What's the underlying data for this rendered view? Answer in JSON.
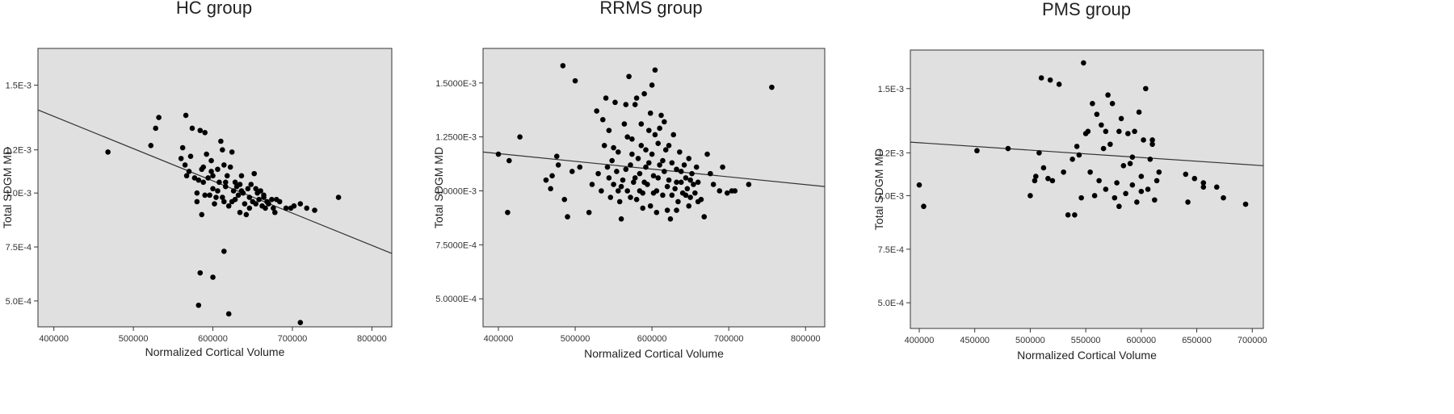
{
  "chart_data": [
    {
      "type": "scatter",
      "title": "HC group",
      "xlabel": "Normalized Cortical Volume",
      "ylabel": "Total SDGM MD",
      "xlim": [
        380000,
        825000
      ],
      "ylim": [
        0.00038,
        0.00167
      ],
      "xticks": [
        400000,
        500000,
        600000,
        700000,
        800000
      ],
      "xtick_labels": [
        "400000",
        "500000",
        "600000",
        "700000",
        "800000"
      ],
      "yticks": [
        0.0005,
        0.00075,
        0.001,
        0.0012,
        0.0015
      ],
      "ytick_labels": [
        "5.0E-4",
        "7.5E-4",
        "1.0E-3",
        "1.2E-3",
        "1.5E-3"
      ],
      "fit_line": {
        "x": [
          380000,
          825000
        ],
        "y": [
          0.001385,
          0.00072
        ]
      },
      "points": [
        [
          468000,
          0.00119
        ],
        [
          522000,
          0.00122
        ],
        [
          528000,
          0.0013
        ],
        [
          532000,
          0.00135
        ],
        [
          566000,
          0.00136
        ],
        [
          560000,
          0.00116
        ],
        [
          562000,
          0.00121
        ],
        [
          565000,
          0.00113
        ],
        [
          567000,
          0.00108
        ],
        [
          570000,
          0.0011
        ],
        [
          572000,
          0.00117
        ],
        [
          574000,
          0.0013
        ],
        [
          577000,
          0.00107
        ],
        [
          580000,
          0.001
        ],
        [
          582000,
          0.00106
        ],
        [
          584000,
          0.00129
        ],
        [
          586000,
          0.00111
        ],
        [
          588000,
          0.00105
        ],
        [
          590000,
          0.00128
        ],
        [
          592000,
          0.00118
        ],
        [
          594000,
          0.00107
        ],
        [
          596000,
          0.00099
        ],
        [
          598000,
          0.0011
        ],
        [
          600000,
          0.00102
        ],
        [
          602000,
          0.00095
        ],
        [
          604000,
          0.00098
        ],
        [
          606000,
          0.00111
        ],
        [
          608000,
          0.00105
        ],
        [
          610000,
          0.00124
        ],
        [
          612000,
          0.0012
        ],
        [
          614000,
          0.00096
        ],
        [
          616000,
          0.00103
        ],
        [
          618000,
          0.00108
        ],
        [
          620000,
          0.00094
        ],
        [
          622000,
          0.00112
        ],
        [
          624000,
          0.00119
        ],
        [
          626000,
          0.00101
        ],
        [
          628000,
          0.00097
        ],
        [
          630000,
          0.00103
        ],
        [
          632000,
          0.00099
        ],
        [
          634000,
          0.00091
        ],
        [
          636000,
          0.00108
        ],
        [
          638000,
          0.001
        ],
        [
          640000,
          0.00095
        ],
        [
          642000,
          0.0009
        ],
        [
          644000,
          0.00102
        ],
        [
          646000,
          0.00098
        ],
        [
          648000,
          0.00104
        ],
        [
          650000,
          0.00096
        ],
        [
          652000,
          0.00109
        ],
        [
          654000,
          0.00095
        ],
        [
          656000,
          0.001
        ],
        [
          658000,
          0.00097
        ],
        [
          660000,
          0.00101
        ],
        [
          662000,
          0.00094
        ],
        [
          664000,
          0.00098
        ],
        [
          666000,
          0.00093
        ],
        [
          668000,
          0.00096
        ],
        [
          670000,
          0.00095
        ],
        [
          674000,
          0.00097
        ],
        [
          676000,
          0.00093
        ],
        [
          678000,
          0.00091
        ],
        [
          680000,
          0.00097
        ],
        [
          684000,
          0.00096
        ],
        [
          692000,
          0.00093
        ],
        [
          698000,
          0.00093
        ],
        [
          702000,
          0.00094
        ],
        [
          710000,
          0.00095
        ],
        [
          718000,
          0.00093
        ],
        [
          728000,
          0.00092
        ],
        [
          758000,
          0.00098
        ],
        [
          580000,
          0.00096
        ],
        [
          586000,
          0.0009
        ],
        [
          590000,
          0.00099
        ],
        [
          600000,
          0.00108
        ],
        [
          606000,
          0.00101
        ],
        [
          612000,
          0.00098
        ],
        [
          616000,
          0.00105
        ],
        [
          624000,
          0.00096
        ],
        [
          636000,
          0.00101
        ],
        [
          646000,
          0.00093
        ],
        [
          654000,
          0.00102
        ],
        [
          664000,
          0.00099
        ],
        [
          588000,
          0.00112
        ],
        [
          598000,
          0.00115
        ],
        [
          614000,
          0.00113
        ],
        [
          628000,
          0.00105
        ],
        [
          634000,
          0.00104
        ],
        [
          584000,
          0.00063
        ],
        [
          600000,
          0.00061
        ],
        [
          614000,
          0.00073
        ],
        [
          582000,
          0.00048
        ],
        [
          620000,
          0.00044
        ],
        [
          710000,
          0.0004
        ]
      ]
    },
    {
      "type": "scatter",
      "title": "RRMS group",
      "xlabel": "Normalized Cortical Volume",
      "ylabel": "Total SDGM MD",
      "xlim": [
        380000,
        825000
      ],
      "ylim": [
        0.00037,
        0.00166
      ],
      "xticks": [
        400000,
        500000,
        600000,
        700000,
        800000
      ],
      "xtick_labels": [
        "400000",
        "500000",
        "600000",
        "700000",
        "800000"
      ],
      "yticks": [
        0.0005,
        0.00075,
        0.001,
        0.00125,
        0.0015
      ],
      "ytick_labels": [
        "5.0000E-4",
        "7.5000E-4",
        "1.0000E-3",
        "1.2500E-3",
        "1.5000E-3"
      ],
      "fit_line": {
        "x": [
          380000,
          825000
        ],
        "y": [
          0.00118,
          0.00102
        ]
      },
      "points": [
        [
          400000,
          0.00117
        ],
        [
          412000,
          0.0009
        ],
        [
          414000,
          0.00114
        ],
        [
          428000,
          0.00125
        ],
        [
          462000,
          0.00105
        ],
        [
          468000,
          0.00101
        ],
        [
          470000,
          0.00107
        ],
        [
          476000,
          0.00116
        ],
        [
          478000,
          0.00112
        ],
        [
          486000,
          0.00096
        ],
        [
          490000,
          0.00088
        ],
        [
          496000,
          0.00109
        ],
        [
          484000,
          0.00158
        ],
        [
          500000,
          0.00151
        ],
        [
          506000,
          0.00111
        ],
        [
          518000,
          0.0009
        ],
        [
          522000,
          0.00103
        ],
        [
          528000,
          0.00137
        ],
        [
          530000,
          0.00108
        ],
        [
          534000,
          0.001
        ],
        [
          536000,
          0.00133
        ],
        [
          538000,
          0.00121
        ],
        [
          540000,
          0.00143
        ],
        [
          542000,
          0.00111
        ],
        [
          544000,
          0.00128
        ],
        [
          546000,
          0.00097
        ],
        [
          548000,
          0.00114
        ],
        [
          550000,
          0.00103
        ],
        [
          552000,
          0.00141
        ],
        [
          554000,
          0.00109
        ],
        [
          556000,
          0.00118
        ],
        [
          558000,
          0.00095
        ],
        [
          560000,
          0.00087
        ],
        [
          562000,
          0.00105
        ],
        [
          564000,
          0.00131
        ],
        [
          566000,
          0.0014
        ],
        [
          568000,
          0.001
        ],
        [
          570000,
          0.00153
        ],
        [
          572000,
          0.00112
        ],
        [
          574000,
          0.00124
        ],
        [
          576000,
          0.00104
        ],
        [
          578000,
          0.0014
        ],
        [
          580000,
          0.00096
        ],
        [
          582000,
          0.00115
        ],
        [
          584000,
          0.00108
        ],
        [
          586000,
          0.00121
        ],
        [
          588000,
          0.00099
        ],
        [
          590000,
          0.00145
        ],
        [
          592000,
          0.00111
        ],
        [
          594000,
          0.00103
        ],
        [
          596000,
          0.00128
        ],
        [
          598000,
          0.00093
        ],
        [
          600000,
          0.00117
        ],
        [
          602000,
          0.00107
        ],
        [
          604000,
          0.00156
        ],
        [
          606000,
          0.001
        ],
        [
          608000,
          0.00122
        ],
        [
          610000,
          0.00112
        ],
        [
          612000,
          0.00135
        ],
        [
          614000,
          0.00098
        ],
        [
          616000,
          0.00109
        ],
        [
          618000,
          0.00119
        ],
        [
          620000,
          0.00091
        ],
        [
          622000,
          0.00105
        ],
        [
          624000,
          0.00087
        ],
        [
          626000,
          0.00113
        ],
        [
          628000,
          0.00126
        ],
        [
          630000,
          0.00101
        ],
        [
          632000,
          0.0011
        ],
        [
          634000,
          0.00095
        ],
        [
          636000,
          0.00118
        ],
        [
          638000,
          0.00104
        ],
        [
          640000,
          0.00099
        ],
        [
          642000,
          0.00112
        ],
        [
          644000,
          0.00106
        ],
        [
          646000,
          0.00101
        ],
        [
          648000,
          0.00115
        ],
        [
          650000,
          0.00097
        ],
        [
          652000,
          0.00108
        ],
        [
          654000,
          0.00103
        ],
        [
          656000,
          0.00099
        ],
        [
          658000,
          0.00111
        ],
        [
          660000,
          0.00104
        ],
        [
          664000,
          0.00096
        ],
        [
          668000,
          0.00088
        ],
        [
          672000,
          0.00117
        ],
        [
          676000,
          0.00108
        ],
        [
          680000,
          0.00103
        ],
        [
          688000,
          0.001
        ],
        [
          692000,
          0.00111
        ],
        [
          698000,
          0.00099
        ],
        [
          704000,
          0.001
        ],
        [
          708000,
          0.001
        ],
        [
          726000,
          0.00103
        ],
        [
          756000,
          0.00148
        ],
        [
          560000,
          0.00102
        ],
        [
          566000,
          0.0011
        ],
        [
          572000,
          0.00097
        ],
        [
          578000,
          0.00106
        ],
        [
          584000,
          0.001
        ],
        [
          590000,
          0.00104
        ],
        [
          596000,
          0.00113
        ],
        [
          602000,
          0.00099
        ],
        [
          608000,
          0.00106
        ],
        [
          614000,
          0.00114
        ],
        [
          620000,
          0.00102
        ],
        [
          626000,
          0.00098
        ],
        [
          632000,
          0.00104
        ],
        [
          638000,
          0.00109
        ],
        [
          644000,
          0.00098
        ],
        [
          650000,
          0.00105
        ],
        [
          568000,
          0.00125
        ],
        [
          574000,
          0.00117
        ],
        [
          586000,
          0.00131
        ],
        [
          592000,
          0.00119
        ],
        [
          598000,
          0.00136
        ],
        [
          604000,
          0.00126
        ],
        [
          610000,
          0.00129
        ],
        [
          616000,
          0.00132
        ],
        [
          622000,
          0.00121
        ],
        [
          580000,
          0.00143
        ],
        [
          600000,
          0.00149
        ],
        [
          588000,
          0.00092
        ],
        [
          606000,
          0.0009
        ],
        [
          632000,
          0.00091
        ],
        [
          648000,
          0.00093
        ],
        [
          660000,
          0.00095
        ],
        [
          544000,
          0.00106
        ],
        [
          550000,
          0.0012
        ],
        [
          556000,
          0.001
        ]
      ]
    },
    {
      "type": "scatter",
      "title": "PMS group",
      "xlabel": "Normalized Cortical Volume",
      "ylabel": "Total SDGM MD",
      "xlim": [
        392000,
        710000
      ],
      "ylim": [
        0.00038,
        0.00168
      ],
      "xticks": [
        400000,
        450000,
        500000,
        550000,
        600000,
        650000,
        700000
      ],
      "xtick_labels": [
        "400000",
        "450000",
        "500000",
        "550000",
        "600000",
        "650000",
        "700000"
      ],
      "yticks": [
        0.0005,
        0.00075,
        0.001,
        0.0012,
        0.0015
      ],
      "ytick_labels": [
        "5.0E-4",
        "7.5E-4",
        "1.0E-3",
        "1.2E-3",
        "1.5E-3"
      ],
      "fit_line": {
        "x": [
          392000,
          710000
        ],
        "y": [
          0.00125,
          0.00114
        ]
      },
      "points": [
        [
          400000,
          0.00105
        ],
        [
          404000,
          0.00095
        ],
        [
          452000,
          0.00121
        ],
        [
          480000,
          0.00122
        ],
        [
          500000,
          0.001
        ],
        [
          504000,
          0.00107
        ],
        [
          505000,
          0.00109
        ],
        [
          508000,
          0.0012
        ],
        [
          510000,
          0.00155
        ],
        [
          512000,
          0.00113
        ],
        [
          516000,
          0.00108
        ],
        [
          518000,
          0.00154
        ],
        [
          520000,
          0.00107
        ],
        [
          526000,
          0.00152
        ],
        [
          530000,
          0.00111
        ],
        [
          534000,
          0.00091
        ],
        [
          538000,
          0.00117
        ],
        [
          540000,
          0.00091
        ],
        [
          542000,
          0.00123
        ],
        [
          544000,
          0.00119
        ],
        [
          546000,
          0.00099
        ],
        [
          548000,
          0.00162
        ],
        [
          550000,
          0.00129
        ],
        [
          552000,
          0.0013
        ],
        [
          554000,
          0.00111
        ],
        [
          556000,
          0.00143
        ],
        [
          558000,
          0.001
        ],
        [
          560000,
          0.00138
        ],
        [
          562000,
          0.00107
        ],
        [
          564000,
          0.00133
        ],
        [
          566000,
          0.00122
        ],
        [
          568000,
          0.00103
        ],
        [
          570000,
          0.00147
        ],
        [
          572000,
          0.00124
        ],
        [
          574000,
          0.00143
        ],
        [
          576000,
          0.00099
        ],
        [
          578000,
          0.00106
        ],
        [
          580000,
          0.0013
        ],
        [
          582000,
          0.00136
        ],
        [
          584000,
          0.00114
        ],
        [
          586000,
          0.00101
        ],
        [
          588000,
          0.00129
        ],
        [
          590000,
          0.00115
        ],
        [
          592000,
          0.00105
        ],
        [
          594000,
          0.0013
        ],
        [
          596000,
          0.00097
        ],
        [
          598000,
          0.00139
        ],
        [
          600000,
          0.00109
        ],
        [
          602000,
          0.00126
        ],
        [
          604000,
          0.0015
        ],
        [
          606000,
          0.00103
        ],
        [
          608000,
          0.00117
        ],
        [
          610000,
          0.00126
        ],
        [
          612000,
          0.00098
        ],
        [
          614000,
          0.00107
        ],
        [
          616000,
          0.00111
        ],
        [
          580000,
          0.00095
        ],
        [
          592000,
          0.00118
        ],
        [
          568000,
          0.0013
        ],
        [
          600000,
          0.00102
        ],
        [
          640000,
          0.0011
        ],
        [
          642000,
          0.00097
        ],
        [
          648000,
          0.00108
        ],
        [
          656000,
          0.00104
        ],
        [
          668000,
          0.00104
        ],
        [
          674000,
          0.00099
        ],
        [
          694000,
          0.00096
        ],
        [
          656000,
          0.00106
        ],
        [
          610000,
          0.00124
        ]
      ]
    }
  ]
}
